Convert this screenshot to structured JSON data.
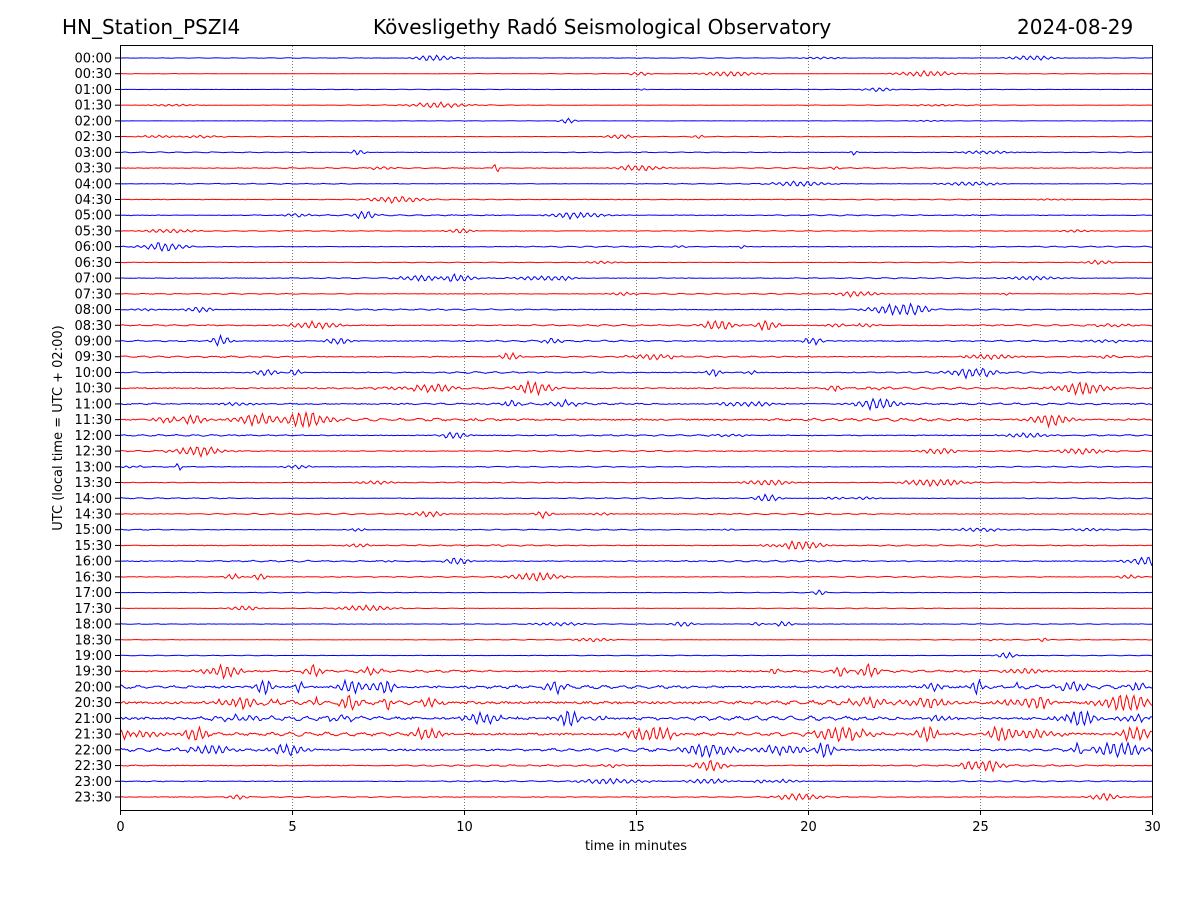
{
  "chart_data": {
    "type": "line",
    "title_left": "HN_Station_PSZI4",
    "title": "Kövesligethy Radó Seismological Observatory",
    "title_right": "2024-08-29",
    "xlabel": "time in minutes",
    "ylabel": "UTC (local time = UTC + 02:00)",
    "xlim": [
      0,
      30
    ],
    "x_ticks": [
      "0",
      "5",
      "10",
      "15",
      "20",
      "25",
      "30"
    ],
    "grid": "vertical dotted",
    "row_labels": [
      "00:00",
      "00:30",
      "01:00",
      "01:30",
      "02:00",
      "02:30",
      "03:00",
      "03:30",
      "04:00",
      "04:30",
      "05:00",
      "05:30",
      "06:00",
      "06:30",
      "07:00",
      "07:30",
      "08:00",
      "08:30",
      "09:00",
      "09:30",
      "10:00",
      "10:30",
      "11:00",
      "11:30",
      "12:00",
      "12:30",
      "13:00",
      "13:30",
      "14:00",
      "14:30",
      "15:00",
      "15:30",
      "16:00",
      "16:30",
      "17:00",
      "17:30",
      "18:00",
      "18:30",
      "19:00",
      "19:30",
      "20:00",
      "20:30",
      "21:00",
      "21:30",
      "22:00",
      "22:30",
      "23:00",
      "23:30"
    ],
    "row_activity": [
      0.3,
      0.3,
      0.3,
      0.4,
      0.2,
      0.4,
      0.5,
      0.6,
      0.5,
      0.5,
      0.7,
      0.5,
      0.6,
      0.4,
      0.6,
      0.6,
      0.8,
      0.9,
      0.9,
      1.0,
      0.9,
      1.2,
      1.2,
      1.6,
      0.9,
      0.8,
      0.6,
      0.6,
      0.6,
      0.7,
      0.6,
      0.8,
      0.9,
      0.6,
      0.4,
      0.4,
      0.4,
      0.4,
      0.4,
      1.4,
      2.2,
      2.6,
      2.6,
      2.2,
      1.8,
      1.0,
      0.7,
      0.6
    ],
    "colors": [
      "#0000ff",
      "#ff0000"
    ]
  }
}
